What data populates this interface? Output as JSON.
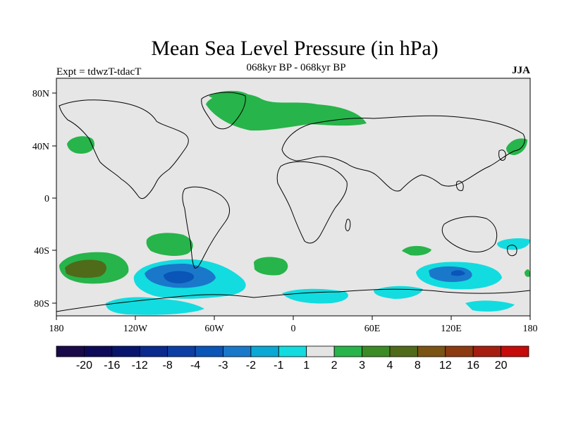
{
  "header": {
    "title": "Mean Sea Level Pressure (in hPa)",
    "subtitle": "068kyr BP - 068kyr BP",
    "left": "Expt = tdwzT-tdacT",
    "right": "JJA"
  },
  "axes": {
    "lat_labels": [
      "80N",
      "40N",
      "0",
      "40S",
      "80S"
    ],
    "lon_labels": [
      "180",
      "120W",
      "60W",
      "0",
      "60E",
      "120E",
      "180"
    ]
  },
  "colorbar": {
    "labels": [
      "-20",
      "-16",
      "-12",
      "-8",
      "-4",
      "-3",
      "-2",
      "-1",
      "1",
      "2",
      "3",
      "4",
      "8",
      "12",
      "16",
      "20"
    ],
    "colors": [
      "#0d0a5a",
      "#08156f",
      "#0a2a8f",
      "#0b3fa5",
      "#0a55b8",
      "#1a78cb",
      "#0aa8d4",
      "#12dcdf",
      "#e4e4e4",
      "#27b44a",
      "#3b8b27",
      "#4f6a19",
      "#7b5312",
      "#8d3a10",
      "#a51e0f",
      "#c70a0a"
    ]
  },
  "map": {
    "background": "#e6e6e6",
    "anomaly_colors": {
      "green": "#27b44a",
      "darkgreen": "#4f6a19",
      "cyan": "#12dcdf",
      "blue1": "#1a78cb",
      "blue2": "#0a55b8"
    }
  }
}
